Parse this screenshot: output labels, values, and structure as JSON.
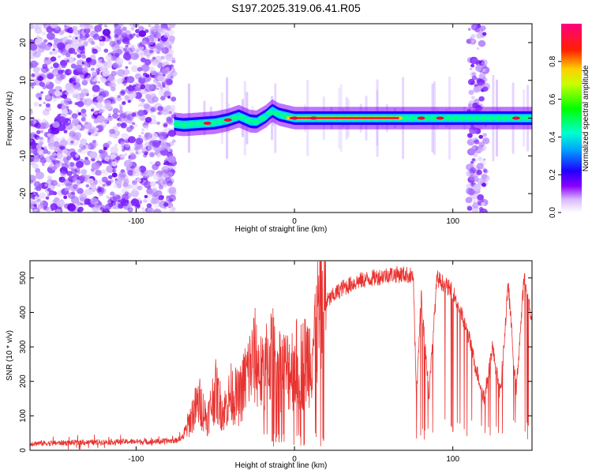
{
  "title": "S197.2025.319.06.41.R05",
  "colors": {
    "snr_line": "#e8322f",
    "carrier": "#ff0033",
    "background": "#ffffff"
  },
  "chart_data": [
    {
      "type": "heatmap",
      "title": "S197.2025.319.06.41.R05",
      "xlabel": "Height of straight line (km)",
      "ylabel": "Frequency (Hz)",
      "xlim": [
        -167,
        150
      ],
      "ylim": [
        -25,
        25
      ],
      "x_ticks": [
        -100,
        0,
        100
      ],
      "x_tick_labels": [
        "-100",
        "0",
        "100"
      ],
      "y_ticks": [
        -20,
        -10,
        0,
        10,
        20
      ],
      "y_tick_labels": [
        "-20",
        "-10",
        "0",
        "10",
        "20"
      ],
      "colorbar": {
        "label": "Normalized spectral amplitude",
        "range": [
          0,
          1
        ],
        "ticks": [
          0,
          0.2,
          0.4,
          0.6,
          0.8
        ],
        "tick_labels": [
          "0.0",
          "0.2",
          "0.4",
          "0.6",
          "0.8"
        ]
      },
      "carrier": {
        "x": [
          -76,
          -70,
          -60,
          -50,
          -42,
          -35,
          -28,
          -24,
          -18,
          -14,
          -10,
          -5,
          0,
          10,
          20,
          60,
          70,
          80,
          90,
          100,
          110,
          120,
          130,
          140,
          150
        ],
        "freq": [
          -1.5,
          -1.8,
          -1.5,
          -1.2,
          -0.5,
          0.5,
          -0.8,
          -1.0,
          0.5,
          2.0,
          1.0,
          0.5,
          0.0,
          0.0,
          0.0,
          0.0,
          0.0,
          0.0,
          0.0,
          0.0,
          0.0,
          0.0,
          0.0,
          0.0,
          0.0
        ]
      },
      "noise_regions_km": [
        [
          -167,
          -76
        ],
        [
          110,
          121
        ]
      ]
    },
    {
      "type": "line",
      "title": "",
      "xlabel": "Height of straight line (km)",
      "ylabel": "SNR (10 * v/v)",
      "xlim": [
        -167,
        150
      ],
      "ylim": [
        0,
        550
      ],
      "x_ticks": [
        -100,
        0,
        100
      ],
      "x_tick_labels": [
        "-100",
        "0",
        "100"
      ],
      "y_ticks": [
        0,
        100,
        200,
        300,
        400,
        500
      ],
      "y_tick_labels": [
        "0",
        "100",
        "200",
        "300",
        "400",
        "500"
      ],
      "series": [
        {
          "x": [
            -167,
            -140,
            -110,
            -90,
            -75,
            -70,
            -64,
            -60,
            -55,
            -50,
            -45,
            -40,
            -35,
            -30,
            -25,
            -20,
            -15,
            -10,
            -5,
            0,
            5,
            10,
            15,
            18,
            20,
            25,
            30,
            40,
            50,
            60,
            70,
            75,
            77,
            80,
            85,
            90,
            95,
            100,
            105,
            110,
            115,
            120,
            125,
            130,
            135,
            140,
            145,
            150
          ],
          "y": [
            20,
            22,
            25,
            25,
            28,
            40,
            110,
            140,
            90,
            175,
            110,
            165,
            150,
            220,
            270,
            210,
            280,
            240,
            230,
            250,
            250,
            275,
            380,
            420,
            430,
            450,
            470,
            490,
            500,
            510,
            510,
            505,
            150,
            450,
            160,
            500,
            480,
            460,
            400,
            330,
            230,
            150,
            300,
            160,
            480,
            170,
            500,
            380
          ]
        }
      ]
    }
  ]
}
